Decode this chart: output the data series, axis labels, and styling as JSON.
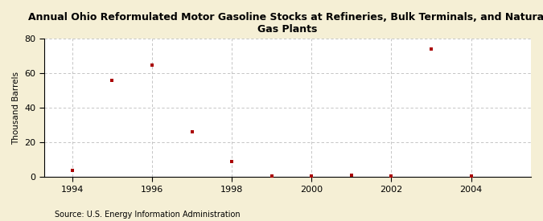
{
  "title": "Annual Ohio Reformulated Motor Gasoline Stocks at Refineries, Bulk Terminals, and Natural\nGas Plants",
  "ylabel": "Thousand Barrels",
  "source": "Source: U.S. Energy Information Administration",
  "x": [
    1994,
    1995,
    1996,
    1997,
    1998,
    1999,
    2000,
    2001,
    2002,
    2003,
    2004
  ],
  "y": [
    4,
    56,
    65,
    26,
    9,
    0.5,
    0.5,
    1,
    0.5,
    74,
    0.5
  ],
  "marker_color": "#aa0000",
  "marker": "s",
  "marker_size": 3.5,
  "xlim": [
    1993.3,
    2005.5
  ],
  "ylim": [
    0,
    80
  ],
  "yticks": [
    0,
    20,
    40,
    60,
    80
  ],
  "xticks": [
    1994,
    1996,
    1998,
    2000,
    2002,
    2004
  ],
  "background_color": "#f5efd5",
  "plot_bg_color": "#ffffff",
  "grid_color": "#bbbbbb",
  "title_fontsize": 9,
  "label_fontsize": 7.5,
  "tick_fontsize": 8,
  "source_fontsize": 7
}
